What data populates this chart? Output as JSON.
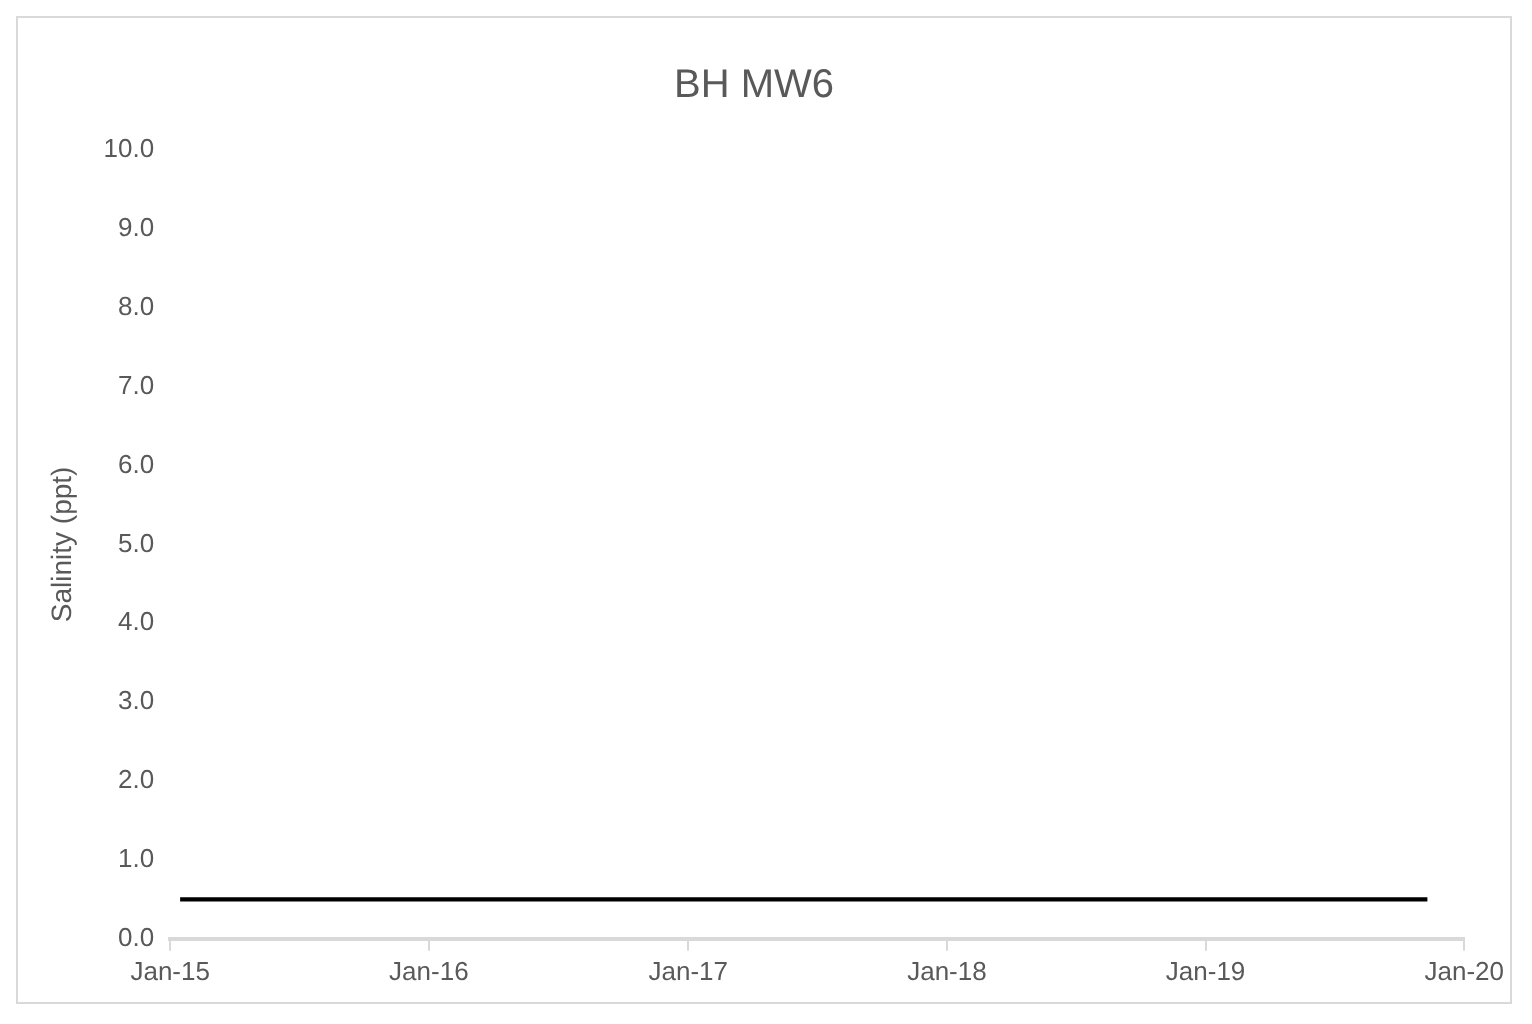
{
  "chart_data": {
    "type": "line",
    "title": "BH MW6",
    "ylabel": "Salinity (ppt)",
    "x": [
      "2015-01-15",
      "2019-11-10"
    ],
    "series": [
      {
        "color": "#000000",
        "values": [
          0.5,
          0.5
        ]
      }
    ],
    "xlim": [
      "2015-01-01",
      "2020-01-01"
    ],
    "xticks": [
      {
        "value": "2015-01-01",
        "label": "Jan-15"
      },
      {
        "value": "2016-01-01",
        "label": "Jan-16"
      },
      {
        "value": "2017-01-01",
        "label": "Jan-17"
      },
      {
        "value": "2018-01-01",
        "label": "Jan-18"
      },
      {
        "value": "2019-01-01",
        "label": "Jan-19"
      },
      {
        "value": "2020-01-01",
        "label": "Jan-20"
      }
    ],
    "ylim": [
      0,
      10
    ],
    "yticks": [
      {
        "value": 0,
        "label": "0.0"
      },
      {
        "value": 1,
        "label": "1.0"
      },
      {
        "value": 2,
        "label": "2.0"
      },
      {
        "value": 3,
        "label": "3.0"
      },
      {
        "value": 4,
        "label": "4.0"
      },
      {
        "value": 5,
        "label": "5.0"
      },
      {
        "value": 6,
        "label": "6.0"
      },
      {
        "value": 7,
        "label": "7.0"
      },
      {
        "value": 8,
        "label": "8.0"
      },
      {
        "value": 9,
        "label": "9.0"
      },
      {
        "value": 10,
        "label": "10.0"
      }
    ],
    "grid": false,
    "legend": false,
    "marker": "none",
    "line_style": "solid"
  }
}
